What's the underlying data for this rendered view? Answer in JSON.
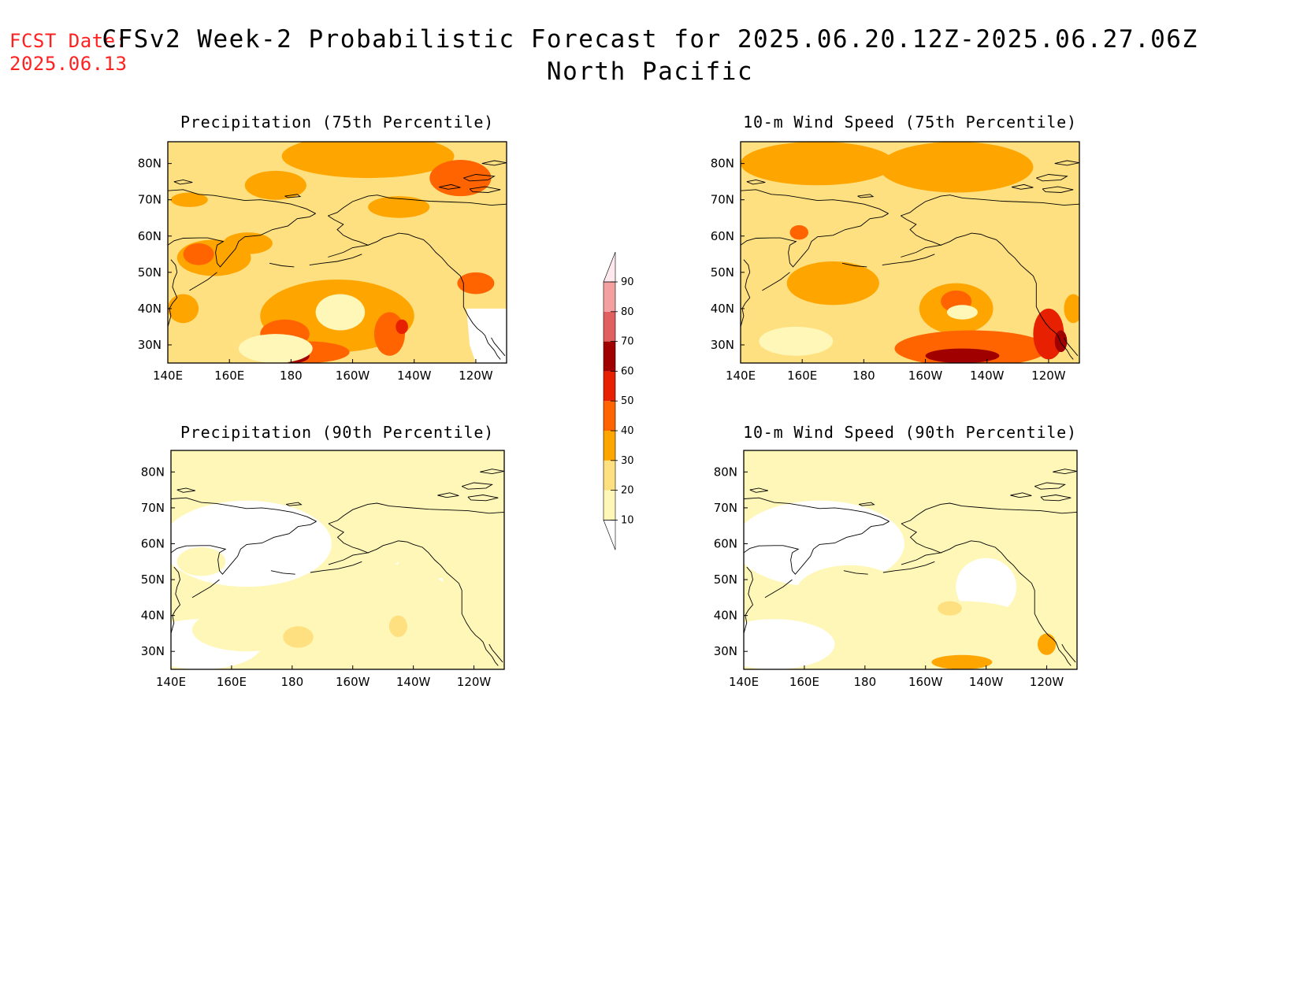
{
  "header": {
    "fcst_label": "FCST Date:",
    "fcst_date": "2025.06.13",
    "title": "CFSv2 Week-2 Probabilistic Forecast for 2025.06.20.12Z-2025.06.27.06Z",
    "region": "North Pacific"
  },
  "colors": {
    "fcst_text": "#ff2020",
    "levels": [
      "#ffffff",
      "#fff7b8",
      "#ffe080",
      "#ffa500",
      "#ff6400",
      "#e62000",
      "#a00000",
      "#e06060",
      "#f4a0a0",
      "#ffe8ee"
    ]
  },
  "panels": [
    {
      "title": "Precipitation (75th Percentile)",
      "lon_ticks": [
        "140E",
        "160E",
        "180",
        "160W",
        "140W",
        "120W"
      ],
      "lat_ticks": [
        "30N",
        "40N",
        "50N",
        "60N",
        "70N",
        "80N"
      ],
      "blobs": [
        {
          "lon": 205,
          "lat": 82,
          "rx": 28,
          "ry": 6,
          "level": 3
        },
        {
          "lon": 235,
          "lat": 76,
          "rx": 10,
          "ry": 5,
          "level": 4
        },
        {
          "lon": 155,
          "lat": 54,
          "rx": 12,
          "ry": 5,
          "level": 3
        },
        {
          "lon": 150,
          "lat": 55,
          "rx": 5,
          "ry": 3,
          "level": 4
        },
        {
          "lon": 175,
          "lat": 74,
          "rx": 10,
          "ry": 4,
          "level": 3
        },
        {
          "lon": 215,
          "lat": 68,
          "rx": 10,
          "ry": 3,
          "level": 3
        },
        {
          "lon": 195,
          "lat": 38,
          "rx": 25,
          "ry": 10,
          "level": 3
        },
        {
          "lon": 178,
          "lat": 33,
          "rx": 8,
          "ry": 4,
          "level": 4
        },
        {
          "lon": 185,
          "lat": 28,
          "rx": 14,
          "ry": 3,
          "level": 4
        },
        {
          "lon": 181,
          "lat": 27,
          "rx": 5,
          "ry": 2,
          "level": 6
        },
        {
          "lon": 212,
          "lat": 33,
          "rx": 5,
          "ry": 6,
          "level": 4
        },
        {
          "lon": 216,
          "lat": 35,
          "rx": 2,
          "ry": 2,
          "level": 5
        },
        {
          "lon": 240,
          "lat": 47,
          "rx": 6,
          "ry": 3,
          "level": 4
        },
        {
          "lon": 145,
          "lat": 40,
          "rx": 5,
          "ry": 4,
          "level": 3
        },
        {
          "lon": 147,
          "lat": 70,
          "rx": 6,
          "ry": 2,
          "level": 3
        },
        {
          "lon": 166,
          "lat": 58,
          "rx": 8,
          "ry": 3,
          "level": 3
        }
      ],
      "pale_blobs": [
        {
          "lon": 196,
          "lat": 39,
          "rx": 8,
          "ry": 5
        },
        {
          "lon": 175,
          "lat": 29,
          "rx": 12,
          "ry": 4
        }
      ]
    },
    {
      "title": "10-m Wind Speed (75th Percentile)",
      "lon_ticks": [
        "140E",
        "160E",
        "180",
        "160W",
        "140W",
        "120W"
      ],
      "lat_ticks": [
        "30N",
        "40N",
        "50N",
        "60N",
        "70N",
        "80N"
      ],
      "blobs": [
        {
          "lon": 165,
          "lat": 80,
          "rx": 25,
          "ry": 6,
          "level": 3
        },
        {
          "lon": 210,
          "lat": 79,
          "rx": 25,
          "ry": 7,
          "level": 3
        },
        {
          "lon": 170,
          "lat": 47,
          "rx": 15,
          "ry": 6,
          "level": 3
        },
        {
          "lon": 210,
          "lat": 40,
          "rx": 12,
          "ry": 7,
          "level": 3
        },
        {
          "lon": 210,
          "lat": 42,
          "rx": 5,
          "ry": 3,
          "level": 4
        },
        {
          "lon": 215,
          "lat": 29,
          "rx": 25,
          "ry": 5,
          "level": 4
        },
        {
          "lon": 212,
          "lat": 27,
          "rx": 12,
          "ry": 2,
          "level": 6
        },
        {
          "lon": 240,
          "lat": 33,
          "rx": 5,
          "ry": 7,
          "level": 5
        },
        {
          "lon": 244,
          "lat": 31,
          "rx": 2,
          "ry": 3,
          "level": 6
        },
        {
          "lon": 159,
          "lat": 61,
          "rx": 3,
          "ry": 2,
          "level": 4
        },
        {
          "lon": 248,
          "lat": 40,
          "rx": 3,
          "ry": 4,
          "level": 3
        }
      ],
      "pale_blobs": [
        {
          "lon": 158,
          "lat": 31,
          "rx": 12,
          "ry": 4
        },
        {
          "lon": 212,
          "lat": 39,
          "rx": 5,
          "ry": 2
        }
      ]
    },
    {
      "title": "Precipitation (90th Percentile)",
      "lon_ticks": [
        "140E",
        "160E",
        "180",
        "160W",
        "140W",
        "120W"
      ],
      "lat_ticks": [
        "30N",
        "40N",
        "50N",
        "60N",
        "70N",
        "80N"
      ],
      "blobs": [
        {
          "lon": 190,
          "lat": 78,
          "rx": 40,
          "ry": 6,
          "level": 1
        },
        {
          "lon": 205,
          "lat": 42,
          "rx": 30,
          "ry": 13,
          "level": 1
        },
        {
          "lon": 165,
          "lat": 36,
          "rx": 18,
          "ry": 6,
          "level": 1
        },
        {
          "lon": 150,
          "lat": 55,
          "rx": 8,
          "ry": 4,
          "level": 1
        },
        {
          "lon": 225,
          "lat": 55,
          "rx": 10,
          "ry": 5,
          "level": 1
        },
        {
          "lon": 182,
          "lat": 34,
          "rx": 5,
          "ry": 3,
          "level": 2
        },
        {
          "lon": 215,
          "lat": 37,
          "rx": 3,
          "ry": 3,
          "level": 2
        }
      ],
      "pale_blobs": [
        {
          "lon": 197,
          "lat": 38,
          "rx": 9,
          "ry": 6
        }
      ]
    },
    {
      "title": "10-m Wind Speed (90th Percentile)",
      "lon_ticks": [
        "140E",
        "160E",
        "180",
        "160W",
        "140W",
        "120W"
      ],
      "lat_ticks": [
        "30N",
        "40N",
        "50N",
        "60N",
        "70N",
        "80N"
      ],
      "blobs": [
        {
          "lon": 190,
          "lat": 79,
          "rx": 40,
          "ry": 6,
          "level": 1
        },
        {
          "lon": 175,
          "lat": 46,
          "rx": 18,
          "ry": 8,
          "level": 1
        },
        {
          "lon": 212,
          "lat": 36,
          "rx": 25,
          "ry": 8,
          "level": 1
        },
        {
          "lon": 212,
          "lat": 27,
          "rx": 10,
          "ry": 2,
          "level": 3
        },
        {
          "lon": 240,
          "lat": 32,
          "rx": 3,
          "ry": 3,
          "level": 3
        },
        {
          "lon": 208,
          "lat": 42,
          "rx": 4,
          "ry": 2,
          "level": 2
        }
      ],
      "pale_blobs": []
    }
  ],
  "colorbar": {
    "labels": [
      "10",
      "20",
      "30",
      "40",
      "50",
      "60",
      "70",
      "80",
      "90"
    ]
  }
}
